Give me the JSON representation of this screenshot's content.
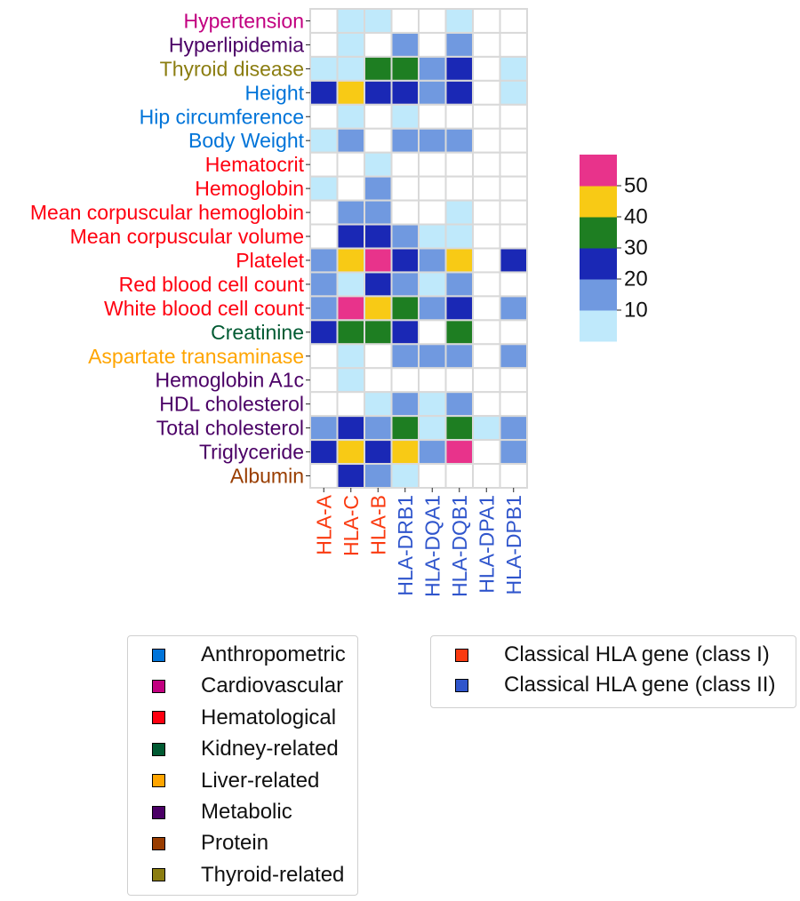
{
  "chart_data": {
    "type": "heatmap",
    "rows": [
      {
        "label": "Hypertension",
        "category": "Cardiovascular"
      },
      {
        "label": "Hyperlipidemia",
        "category": "Metabolic"
      },
      {
        "label": "Thyroid disease",
        "category": "Thyroid-related"
      },
      {
        "label": "Height",
        "category": "Anthropometric"
      },
      {
        "label": "Hip circumference",
        "category": "Anthropometric"
      },
      {
        "label": "Body Weight",
        "category": "Anthropometric"
      },
      {
        "label": "Hematocrit",
        "category": "Hematological"
      },
      {
        "label": "Hemoglobin",
        "category": "Hematological"
      },
      {
        "label": "Mean corpuscular hemoglobin",
        "category": "Hematological"
      },
      {
        "label": "Mean corpuscular volume",
        "category": "Hematological"
      },
      {
        "label": "Platelet",
        "category": "Hematological"
      },
      {
        "label": "Red blood cell count",
        "category": "Hematological"
      },
      {
        "label": "White blood cell count",
        "category": "Hematological"
      },
      {
        "label": "Creatinine",
        "category": "Kidney-related"
      },
      {
        "label": "Aspartate transaminase",
        "category": "Liver-related"
      },
      {
        "label": "Hemoglobin A1c",
        "category": "Metabolic"
      },
      {
        "label": "HDL cholesterol",
        "category": "Metabolic"
      },
      {
        "label": "Total cholesterol",
        "category": "Metabolic"
      },
      {
        "label": "Triglyceride",
        "category": "Metabolic"
      },
      {
        "label": "Albumin",
        "category": "Protein"
      }
    ],
    "columns": [
      {
        "label": "HLA-A",
        "class": "Classical HLA gene (class I)"
      },
      {
        "label": "HLA-C",
        "class": "Classical HLA gene (class I)"
      },
      {
        "label": "HLA-B",
        "class": "Classical HLA gene (class I)"
      },
      {
        "label": "HLA-DRB1",
        "class": "Classical HLA gene (class II)"
      },
      {
        "label": "HLA-DQA1",
        "class": "Classical HLA gene (class II)"
      },
      {
        "label": "HLA-DQB1",
        "class": "Classical HLA gene (class II)"
      },
      {
        "label": "HLA-DPA1",
        "class": "Classical HLA gene (class II)"
      },
      {
        "label": "HLA-DPB1",
        "class": "Classical HLA gene (class II)"
      }
    ],
    "values": [
      [
        null,
        5,
        5,
        null,
        null,
        5,
        null,
        null
      ],
      [
        null,
        5,
        null,
        15,
        null,
        15,
        null,
        null
      ],
      [
        5,
        5,
        35,
        35,
        15,
        25,
        null,
        5
      ],
      [
        25,
        45,
        25,
        25,
        15,
        25,
        null,
        5
      ],
      [
        null,
        5,
        null,
        5,
        null,
        null,
        null,
        null
      ],
      [
        5,
        15,
        null,
        15,
        15,
        15,
        null,
        null
      ],
      [
        null,
        null,
        5,
        null,
        null,
        null,
        null,
        null
      ],
      [
        5,
        null,
        15,
        null,
        null,
        null,
        null,
        null
      ],
      [
        null,
        15,
        15,
        null,
        null,
        5,
        null,
        null
      ],
      [
        null,
        25,
        25,
        15,
        5,
        5,
        null,
        null
      ],
      [
        15,
        45,
        55,
        25,
        15,
        45,
        null,
        25
      ],
      [
        15,
        5,
        25,
        15,
        5,
        15,
        null,
        null
      ],
      [
        15,
        55,
        45,
        35,
        15,
        25,
        null,
        15
      ],
      [
        25,
        35,
        35,
        25,
        null,
        35,
        null,
        null
      ],
      [
        null,
        5,
        null,
        15,
        15,
        15,
        null,
        15
      ],
      [
        null,
        5,
        null,
        null,
        null,
        null,
        null,
        null
      ],
      [
        null,
        null,
        5,
        15,
        5,
        15,
        null,
        null
      ],
      [
        15,
        25,
        15,
        35,
        5,
        35,
        5,
        15
      ],
      [
        25,
        45,
        25,
        45,
        15,
        55,
        null,
        15
      ],
      [
        null,
        25,
        15,
        5,
        null,
        null,
        null,
        null
      ]
    ],
    "colorbar": {
      "bins": [
        0,
        10,
        20,
        30,
        40,
        50,
        60
      ],
      "colors": [
        "#bfe9fb",
        "#7099e0",
        "#1a28b5",
        "#1e7e22",
        "#f8ca15",
        "#e8338b"
      ],
      "ticks": [
        10,
        20,
        30,
        40,
        50
      ]
    },
    "grid": true,
    "gridColor": "#d9d9d9",
    "emptyColor": "#ffffff"
  },
  "legends": {
    "categories": [
      {
        "label": "Anthropometric",
        "color": "#0074d9"
      },
      {
        "label": "Cardiovascular",
        "color": "#c20080"
      },
      {
        "label": "Hematological",
        "color": "#ff0010"
      },
      {
        "label": "Kidney-related",
        "color": "#005a32"
      },
      {
        "label": "Liver-related",
        "color": "#ffa500"
      },
      {
        "label": "Metabolic",
        "color": "#4b0066"
      },
      {
        "label": "Protein",
        "color": "#993d00"
      },
      {
        "label": "Thyroid-related",
        "color": "#8b7d10"
      }
    ],
    "hla_classes": [
      {
        "label": "Classical HLA gene (class I)",
        "color": "#fa3a10"
      },
      {
        "label": "Classical HLA gene (class II)",
        "color": "#2f55cc"
      }
    ]
  }
}
